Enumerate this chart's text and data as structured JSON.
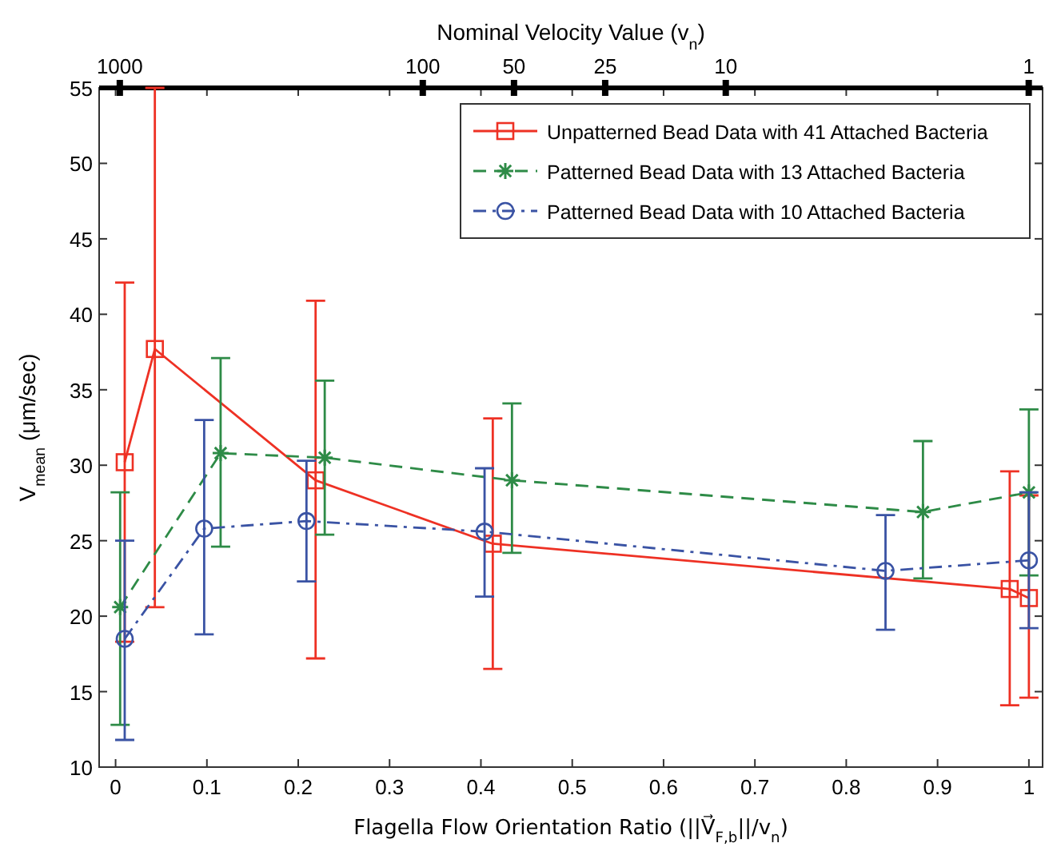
{
  "chart_data": {
    "type": "line",
    "xlabel": "Flagella Flow Orientation Ratio (||V⃗$_{F,b}$||/v$_{n}$)",
    "ylabel": "V$_{mean}$ (μm/sec)",
    "x2label": "Nominal Velocity Value (v$_{n}$)",
    "xlim": [
      -0.018,
      1.015
    ],
    "xticks": [
      0,
      0.1,
      0.2,
      0.3,
      0.4,
      0.5,
      0.6,
      0.7,
      0.8,
      0.9,
      1
    ],
    "ylim": [
      10,
      55
    ],
    "yticks": [
      10,
      15,
      20,
      25,
      30,
      35,
      40,
      45,
      50,
      55
    ],
    "x2lim": [
      1170,
      0.9
    ],
    "x2ticks": [
      1000,
      100,
      50,
      25,
      10,
      1
    ],
    "log": "x2",
    "grid": false,
    "legend": "top right",
    "series": [
      {
        "name": "Unpatterned Bead Data with 41 Attached Bacteria",
        "color": "#ee3124",
        "marker": "square",
        "line_style": "solid",
        "x": [
          0.01,
          0.043,
          0.219,
          0.413,
          0.979,
          1.0
        ],
        "values": [
          30.2,
          37.7,
          29.0,
          24.8,
          21.8,
          21.2
        ],
        "errors": [
          [
            18.3,
            42.1
          ],
          [
            20.6,
            55
          ],
          [
            17.2,
            40.9
          ],
          [
            16.5,
            33.1
          ],
          [
            14.1,
            29.6
          ],
          [
            14.6,
            28.0
          ]
        ]
      },
      {
        "name": "Patterned Bead Data with 13 Attached Bacteria",
        "color": "#2e8b47",
        "marker": "cross",
        "line_style": "dashed",
        "x": [
          0.005,
          0.115,
          0.229,
          0.434,
          0.884,
          1.0
        ],
        "values": [
          20.6,
          30.8,
          30.5,
          29.0,
          26.9,
          28.2
        ],
        "errors": [
          [
            12.8,
            28.2
          ],
          [
            24.6,
            37.1
          ],
          [
            25.4,
            35.6
          ],
          [
            24.2,
            34.1
          ],
          [
            22.5,
            31.6
          ],
          [
            22.7,
            33.7
          ]
        ]
      },
      {
        "name": "Patterned Bead Data with 10 Attached Bacteria",
        "color": "#3a53a4",
        "marker": "circle",
        "line_style": "dashdot",
        "x": [
          0.01,
          0.097,
          0.209,
          0.404,
          0.843,
          1.0
        ],
        "values": [
          18.5,
          25.8,
          26.3,
          25.6,
          23.0,
          23.7
        ],
        "errors": [
          [
            11.8,
            25.0
          ],
          [
            18.8,
            33.0
          ],
          [
            22.3,
            30.3
          ],
          [
            21.3,
            29.8
          ],
          [
            19.1,
            26.7
          ],
          [
            19.2,
            28.2
          ]
        ]
      }
    ]
  }
}
